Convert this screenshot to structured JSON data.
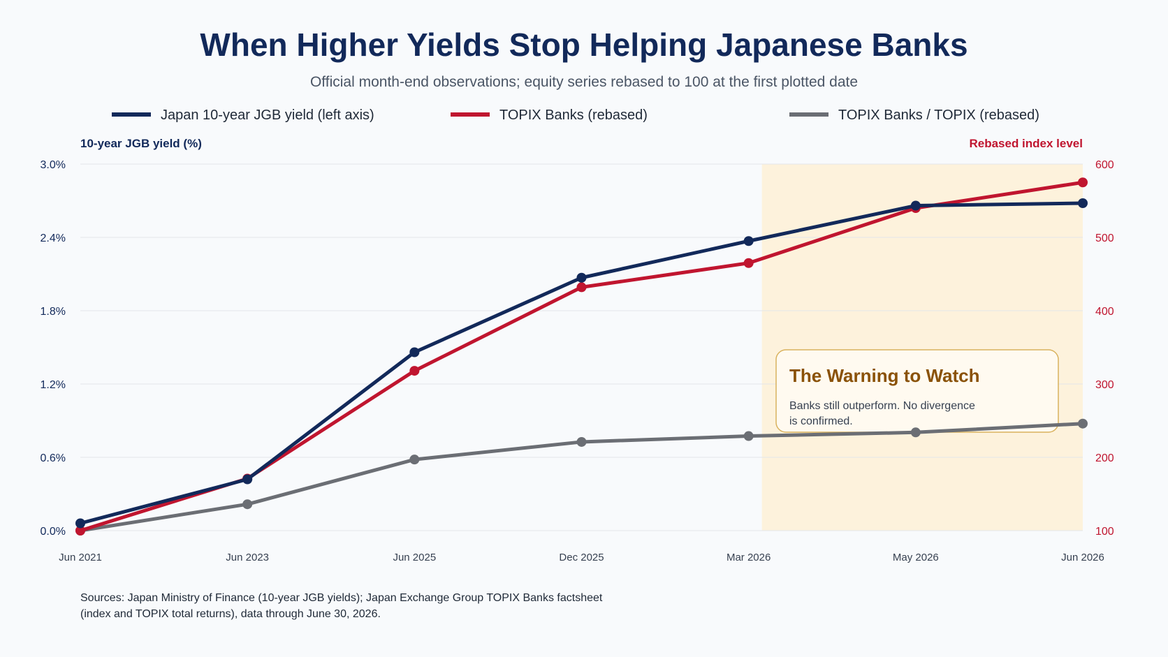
{
  "colors": {
    "yield": "#12295a",
    "banks": "#c0152f",
    "ratio": "#6b6e74",
    "highlight": "#fdf2dc",
    "annotation_border": "#d9b25e",
    "annotation_title": "#8a5208",
    "grid": "#e3e6ea"
  },
  "chart_data": {
    "type": "line",
    "title": "When Higher Yields Stop Helping Japanese Banks",
    "subtitle": "Official month-end observations; equity series rebased to 100 at the first plotted date",
    "categories": [
      "Jun 2021",
      "Jun 2023",
      "Jun 2025",
      "Dec 2025",
      "Mar 2026",
      "May 2026",
      "Jun 2026"
    ],
    "y_left": {
      "label": "10-year JGB yield (%)",
      "range": [
        0,
        3.0
      ],
      "ticks": [
        "0.0%",
        "0.6%",
        "1.2%",
        "1.8%",
        "2.4%",
        "3.0%"
      ]
    },
    "y_right": {
      "label": "Rebased index level",
      "range": [
        100,
        600
      ],
      "ticks": [
        "100",
        "200",
        "300",
        "400",
        "500",
        "600"
      ]
    },
    "series": [
      {
        "name": "Japan 10-year JGB yield (left axis)",
        "axis": "left",
        "values": [
          0.06,
          0.42,
          1.46,
          2.07,
          2.37,
          2.66,
          2.68
        ]
      },
      {
        "name": "TOPIX Banks (rebased)",
        "axis": "right",
        "values": [
          100,
          171,
          318,
          432,
          465,
          540,
          575
        ]
      },
      {
        "name": "TOPIX Banks / TOPIX (rebased)",
        "axis": "right",
        "values": [
          100,
          136,
          197,
          221,
          229,
          234,
          246
        ]
      }
    ],
    "highlight_range": [
      "Mar 2026",
      "Jun 2026"
    ],
    "annotation": {
      "title": "The Warning to Watch",
      "body_line1": "Banks still outperform. No divergence",
      "body_line2": "is confirmed."
    },
    "grid": true,
    "legend_position": "top"
  },
  "footer": {
    "source_line1": "Sources: Japan Ministry of Finance (10-year JGB yields); Japan Exchange Group TOPIX Banks factsheet",
    "source_line2": "(index and TOPIX total returns), data through June 30, 2026."
  }
}
